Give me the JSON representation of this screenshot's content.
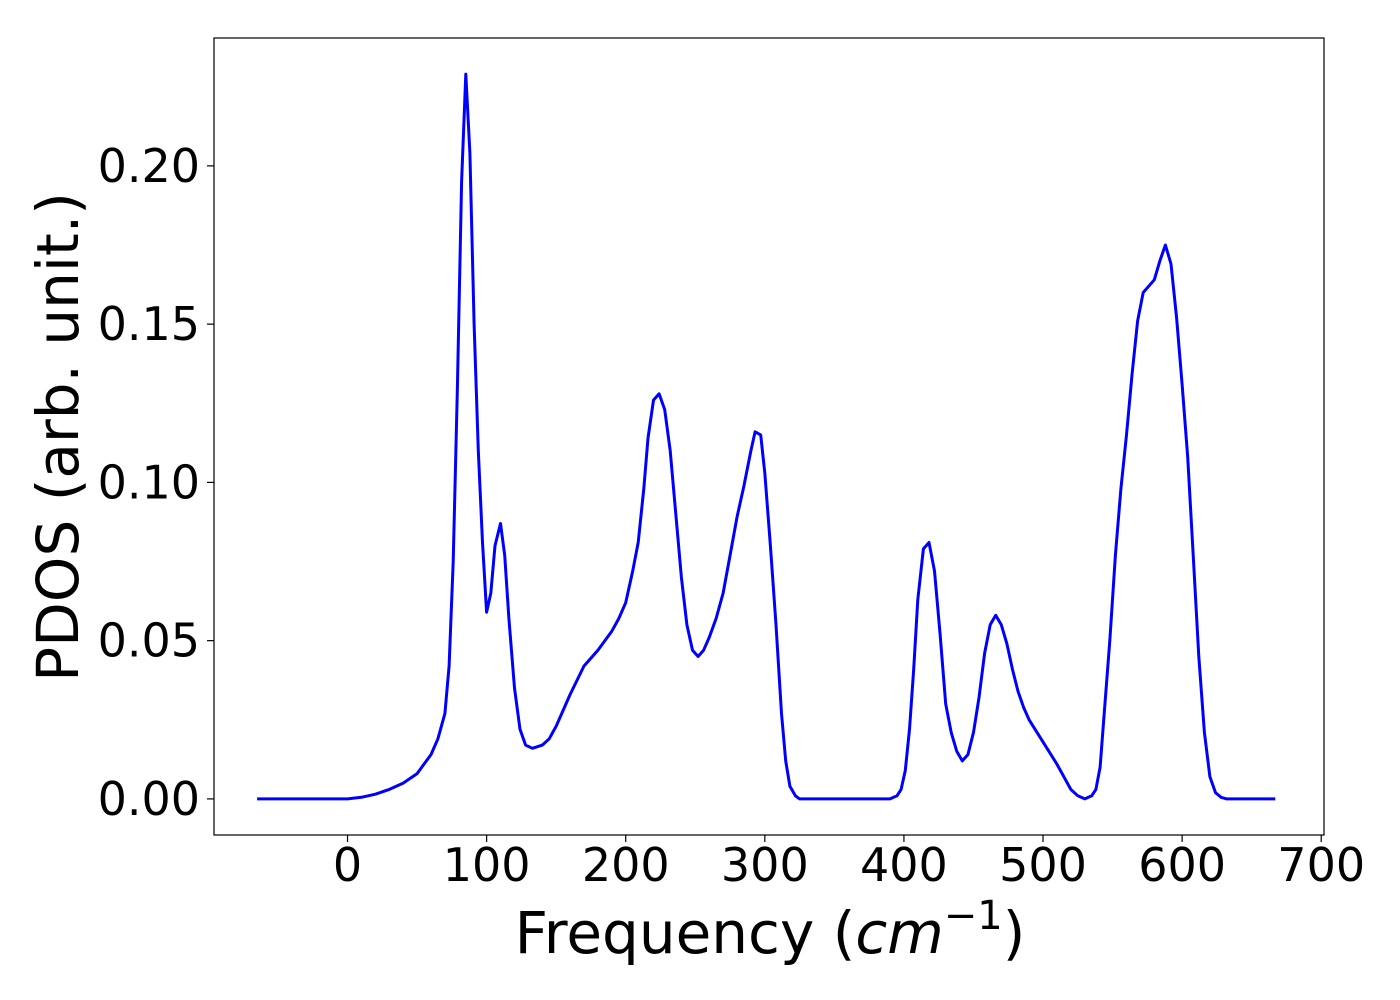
{
  "chart_data": {
    "type": "line",
    "x_label": {
      "text": "Frequency (",
      "unit": "cm",
      "exponent": "−1",
      "close": ")"
    },
    "y_label": "PDOS (arb. unit.)",
    "xlim": [
      -96,
      702
    ],
    "ylim": [
      -0.0114,
      0.2404
    ],
    "xticks": [
      0,
      100,
      200,
      300,
      400,
      500,
      600,
      700
    ],
    "yticks": [
      {
        "value": 0,
        "label": "0.00"
      },
      {
        "value": 0.05,
        "label": "0.05"
      },
      {
        "value": 0.1,
        "label": "0.10"
      },
      {
        "value": 0.15,
        "label": "0.15"
      },
      {
        "value": 0.2,
        "label": "0.20"
      }
    ],
    "x": [
      -65,
      0,
      10,
      20,
      30,
      40,
      50,
      55,
      60,
      65,
      70,
      73,
      76,
      79,
      82,
      85,
      88,
      91,
      94,
      97,
      100,
      103,
      106,
      110,
      113,
      116,
      120,
      124,
      128,
      133,
      140,
      145,
      150,
      160,
      170,
      180,
      190,
      195,
      200,
      205,
      209,
      213,
      216,
      220,
      224,
      228,
      232,
      236,
      240,
      244,
      248,
      252,
      256,
      260,
      265,
      270,
      275,
      280,
      285,
      290,
      293,
      297,
      300,
      304,
      308,
      312,
      315,
      318,
      322,
      325,
      390,
      395,
      398,
      401,
      404,
      407,
      410,
      414,
      418,
      422,
      426,
      430,
      434,
      438,
      442,
      446,
      450,
      454,
      458,
      462,
      466,
      470,
      474,
      478,
      482,
      486,
      490,
      500,
      510,
      515,
      520,
      525,
      530,
      535,
      538,
      541,
      544,
      548,
      552,
      556,
      560,
      564,
      568,
      572,
      580,
      584,
      588,
      592,
      596,
      600,
      604,
      608,
      612,
      616,
      620,
      624,
      628,
      632,
      667
    ],
    "series": [
      {
        "name": "PDOS",
        "color": "#0000ff",
        "values": [
          0,
          0,
          0.0005,
          0.0015,
          0.003,
          0.005,
          0.008,
          0.011,
          0.014,
          0.019,
          0.027,
          0.042,
          0.075,
          0.13,
          0.195,
          0.229,
          0.204,
          0.15,
          0.11,
          0.081,
          0.059,
          0.065,
          0.08,
          0.087,
          0.077,
          0.057,
          0.035,
          0.022,
          0.017,
          0.016,
          0.017,
          0.019,
          0.023,
          0.033,
          0.042,
          0.047,
          0.053,
          0.057,
          0.062,
          0.072,
          0.081,
          0.098,
          0.114,
          0.126,
          0.128,
          0.123,
          0.11,
          0.09,
          0.07,
          0.055,
          0.047,
          0.045,
          0.047,
          0.051,
          0.057,
          0.065,
          0.077,
          0.089,
          0.099,
          0.11,
          0.116,
          0.115,
          0.103,
          0.08,
          0.055,
          0.027,
          0.012,
          0.004,
          0.001,
          0,
          0,
          0.001,
          0.003,
          0.009,
          0.022,
          0.041,
          0.063,
          0.079,
          0.081,
          0.072,
          0.052,
          0.03,
          0.021,
          0.015,
          0.012,
          0.014,
          0.021,
          0.032,
          0.046,
          0.055,
          0.058,
          0.055,
          0.049,
          0.041,
          0.034,
          0.029,
          0.025,
          0.018,
          0.011,
          0.007,
          0.003,
          0.001,
          0,
          0.001,
          0.003,
          0.01,
          0.027,
          0.05,
          0.077,
          0.098,
          0.115,
          0.134,
          0.151,
          0.16,
          0.164,
          0.17,
          0.175,
          0.169,
          0.152,
          0.131,
          0.108,
          0.077,
          0.045,
          0.021,
          0.007,
          0.002,
          0.0005,
          0,
          0
        ]
      }
    ]
  }
}
